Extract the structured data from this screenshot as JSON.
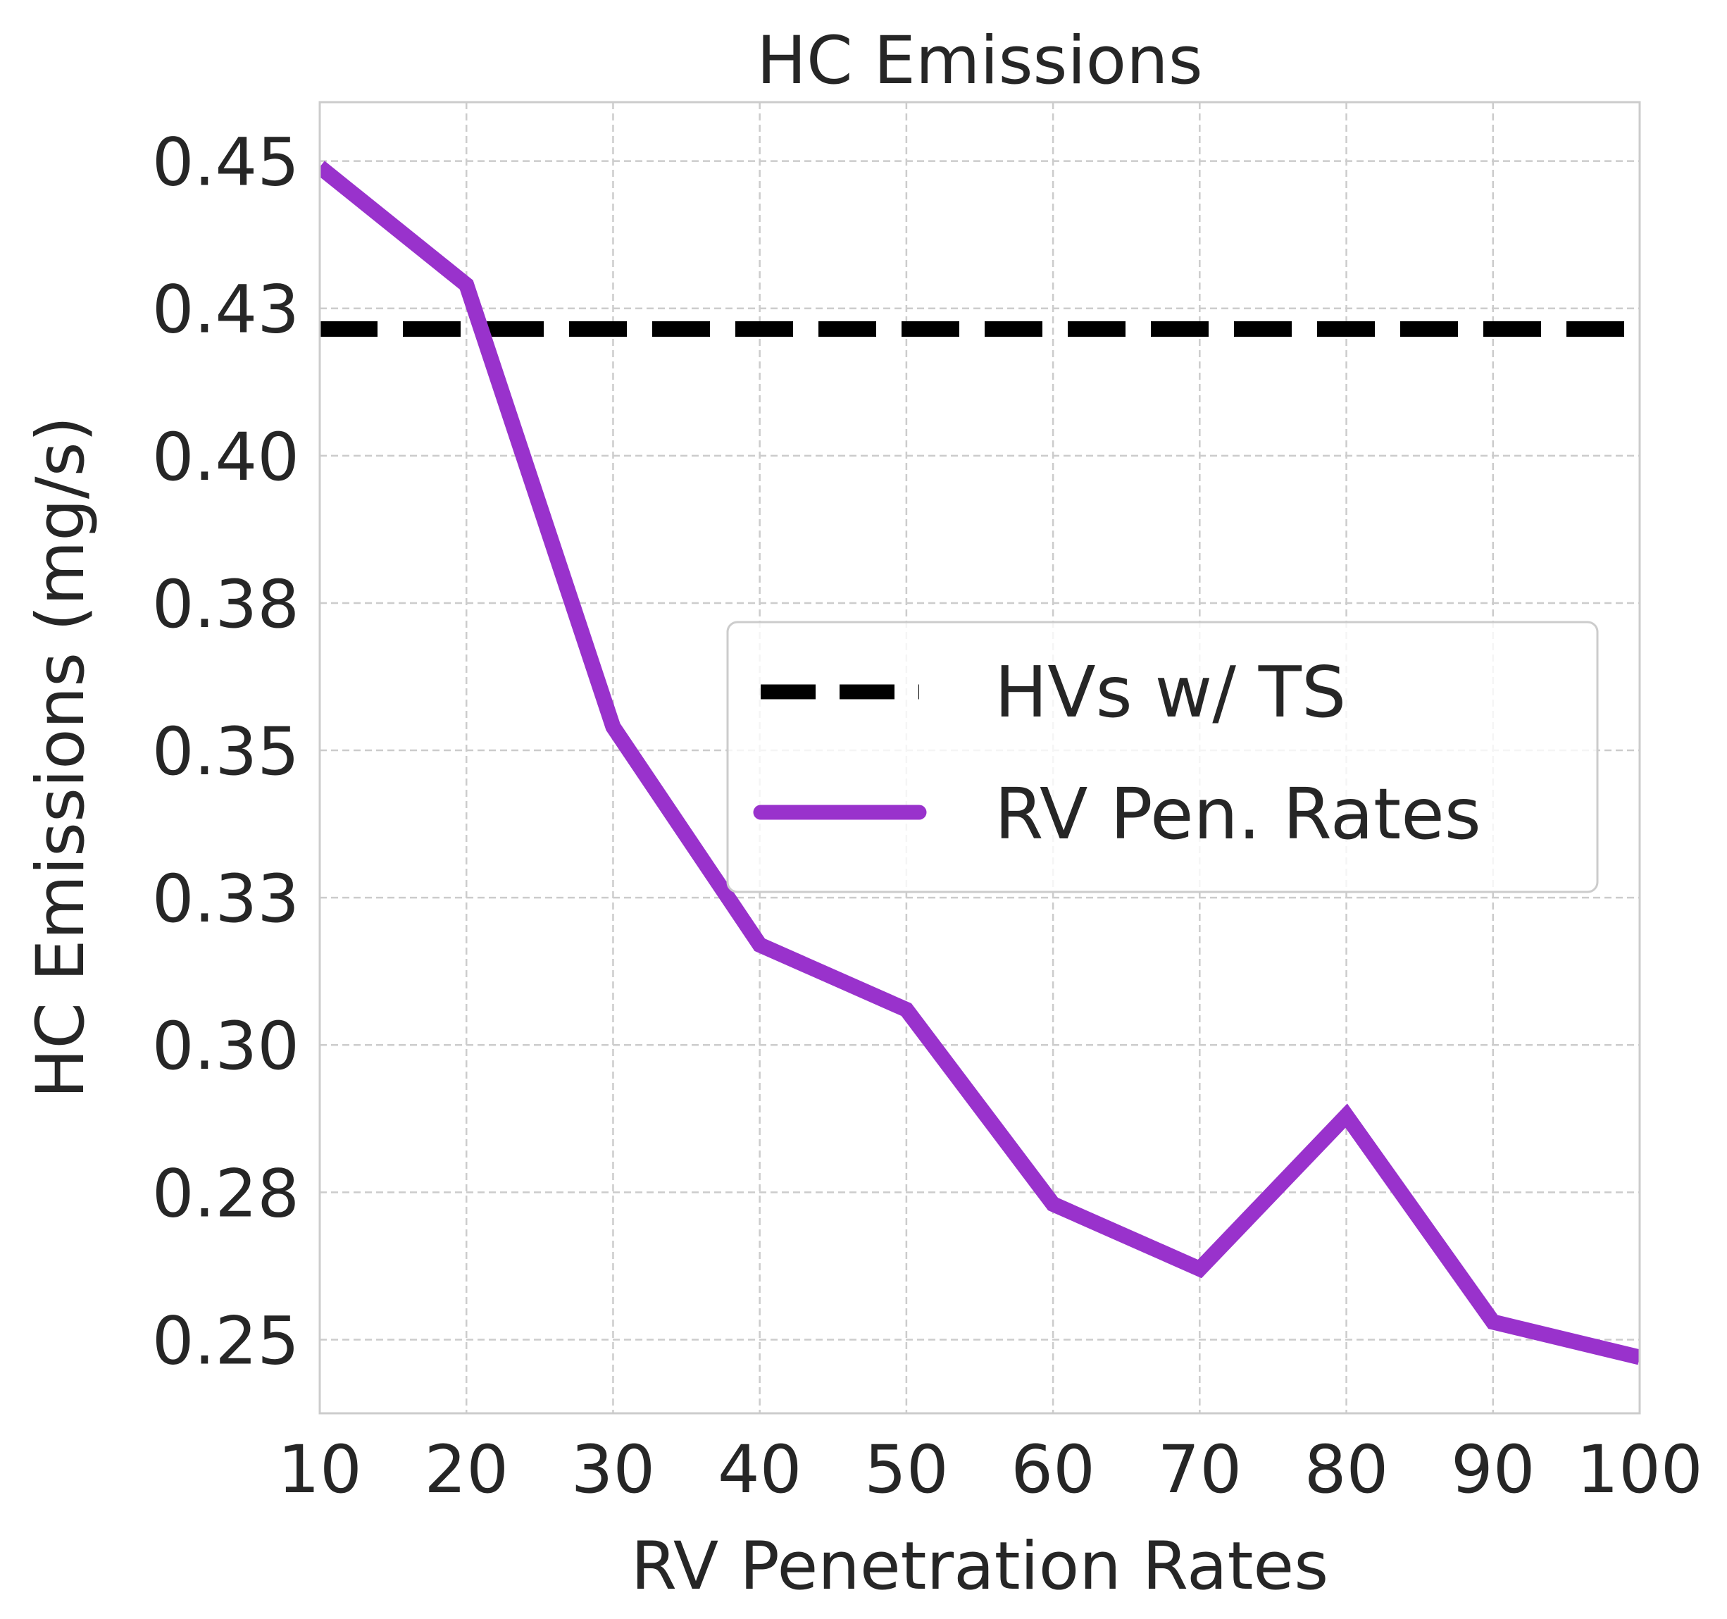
{
  "chart_data": {
    "type": "line",
    "title": "HC Emissions",
    "xlabel": "RV Penetration Rates",
    "ylabel": "HC Emissions (mg/s)",
    "x": [
      10,
      20,
      30,
      40,
      50,
      60,
      70,
      80,
      90,
      100
    ],
    "xlim": [
      10,
      100
    ],
    "ylim": [
      0.2375,
      0.46
    ],
    "xticks": [
      10,
      20,
      30,
      40,
      50,
      60,
      70,
      80,
      90,
      100
    ],
    "xtick_labels": [
      "10",
      "20",
      "30",
      "40",
      "50",
      "60",
      "70",
      "80",
      "90",
      "100"
    ],
    "yticks": [
      0.25,
      0.275,
      0.3,
      0.325,
      0.35,
      0.375,
      0.4,
      0.425,
      0.45
    ],
    "ytick_labels": [
      "0.25",
      "0.28",
      "0.30",
      "0.33",
      "0.35",
      "0.38",
      "0.40",
      "0.43",
      "0.45"
    ],
    "grid": true,
    "legend_position": "center-right",
    "series": [
      {
        "name": "HVs w/ TS",
        "style": "dashed",
        "color": "#000000",
        "values": [
          0.4215,
          0.4215,
          0.4215,
          0.4215,
          0.4215,
          0.4215,
          0.4215,
          0.4215,
          0.4215,
          0.4215
        ]
      },
      {
        "name": "RV Pen. Rates",
        "style": "solid",
        "color": "#9932CC",
        "values": [
          0.449,
          0.429,
          0.354,
          0.317,
          0.306,
          0.273,
          0.262,
          0.288,
          0.253,
          0.247
        ]
      }
    ]
  }
}
